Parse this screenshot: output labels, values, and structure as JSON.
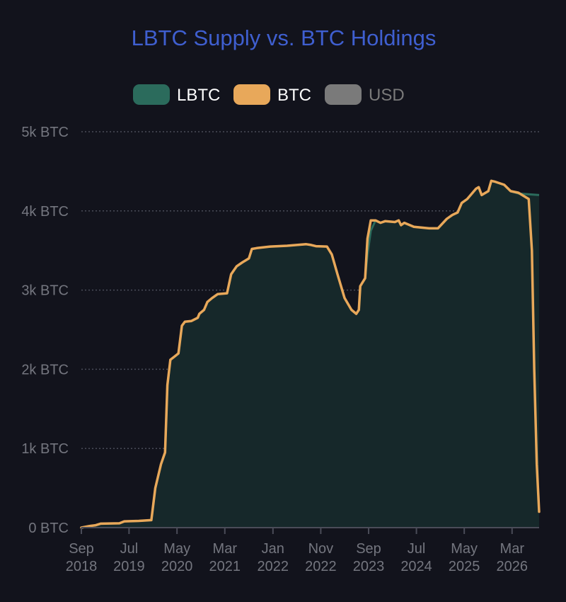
{
  "chart_data": {
    "type": "area",
    "title": "LBTC Supply vs. BTC Holdings",
    "legend": {
      "placement": "top",
      "entries": [
        {
          "name": "LBTC",
          "color": "#2b6b5c",
          "active": true
        },
        {
          "name": "BTC",
          "color": "#e8a85a",
          "active": true
        },
        {
          "name": "USD",
          "color": "#7a7a7a",
          "active": false
        }
      ]
    },
    "y_axis": {
      "range": [
        0,
        5000
      ],
      "ticks": [
        {
          "value": 0,
          "label": "0 BTC"
        },
        {
          "value": 1000,
          "label": "1k BTC"
        },
        {
          "value": 2000,
          "label": "2k BTC"
        },
        {
          "value": 3000,
          "label": "3k BTC"
        },
        {
          "value": 4000,
          "label": "4k BTC"
        },
        {
          "value": 5000,
          "label": "5k BTC"
        }
      ],
      "grid": true
    },
    "x_axis": {
      "range": [
        "2018-09-01",
        "2026-08-20"
      ],
      "ticks": [
        {
          "date": "2018-09-01",
          "month": "Sep",
          "year": "2018"
        },
        {
          "date": "2019-07-01",
          "month": "Jul",
          "year": "2019"
        },
        {
          "date": "2020-05-01",
          "month": "May",
          "year": "2020"
        },
        {
          "date": "2021-03-01",
          "month": "Mar",
          "year": "2021"
        },
        {
          "date": "2022-01-01",
          "month": "Jan",
          "year": "2022"
        },
        {
          "date": "2022-11-01",
          "month": "Nov",
          "year": "2022"
        },
        {
          "date": "2023-09-01",
          "month": "Sep",
          "year": "2023"
        },
        {
          "date": "2024-07-01",
          "month": "Jul",
          "year": "2024"
        },
        {
          "date": "2025-05-01",
          "month": "May",
          "year": "2025"
        },
        {
          "date": "2026-03-01",
          "month": "Mar",
          "year": "2026"
        }
      ]
    },
    "series": [
      {
        "name": "LBTC",
        "type": "area",
        "color": "#2b6b5c",
        "fill": "#16282a",
        "points": [
          [
            "2018-09-01",
            0
          ],
          [
            "2018-10-20",
            20
          ],
          [
            "2018-12-01",
            30
          ],
          [
            "2019-01-01",
            50
          ],
          [
            "2019-05-01",
            55
          ],
          [
            "2019-06-01",
            80
          ],
          [
            "2019-09-01",
            85
          ],
          [
            "2019-11-20",
            95
          ],
          [
            "2019-12-15",
            500
          ],
          [
            "2020-01-20",
            800
          ],
          [
            "2020-02-15",
            950
          ],
          [
            "2020-03-01",
            1800
          ],
          [
            "2020-03-20",
            2120
          ],
          [
            "2020-04-15",
            2160
          ],
          [
            "2020-05-10",
            2200
          ],
          [
            "2020-06-01",
            2550
          ],
          [
            "2020-06-20",
            2600
          ],
          [
            "2020-08-01",
            2610
          ],
          [
            "2020-09-10",
            2650
          ],
          [
            "2020-09-20",
            2700
          ],
          [
            "2020-10-20",
            2750
          ],
          [
            "2020-11-10",
            2850
          ],
          [
            "2020-12-10",
            2900
          ],
          [
            "2021-01-15",
            2950
          ],
          [
            "2021-03-15",
            2960
          ],
          [
            "2021-04-10",
            3200
          ],
          [
            "2021-05-15",
            3300
          ],
          [
            "2021-06-20",
            3350
          ],
          [
            "2021-08-01",
            3400
          ],
          [
            "2021-08-20",
            3520
          ],
          [
            "2021-09-20",
            3530
          ],
          [
            "2021-12-15",
            3550
          ],
          [
            "2022-04-01",
            3560
          ],
          [
            "2022-08-01",
            3580
          ],
          [
            "2022-09-01",
            3570
          ],
          [
            "2022-10-01",
            3555
          ],
          [
            "2022-12-10",
            3550
          ],
          [
            "2023-01-10",
            3450
          ],
          [
            "2023-02-15",
            3200
          ],
          [
            "2023-04-01",
            2900
          ],
          [
            "2023-05-15",
            2750
          ],
          [
            "2023-06-15",
            2700
          ],
          [
            "2023-07-01",
            2750
          ],
          [
            "2023-07-10",
            3050
          ],
          [
            "2023-08-10",
            3150
          ],
          [
            "2023-08-25",
            3450
          ],
          [
            "2023-09-15",
            3750
          ],
          [
            "2023-10-15",
            3880
          ],
          [
            "2023-11-15",
            3850
          ],
          [
            "2023-12-15",
            3870
          ],
          [
            "2024-02-15",
            3860
          ],
          [
            "2024-03-10",
            3880
          ],
          [
            "2024-03-25",
            3820
          ],
          [
            "2024-04-15",
            3850
          ],
          [
            "2024-06-15",
            3800
          ],
          [
            "2024-09-20",
            3780
          ],
          [
            "2024-11-15",
            3780
          ],
          [
            "2025-01-10",
            3900
          ],
          [
            "2025-02-15",
            3950
          ],
          [
            "2025-03-20",
            3980
          ],
          [
            "2025-04-15",
            4100
          ],
          [
            "2025-05-20",
            4150
          ],
          [
            "2025-07-15",
            4280
          ],
          [
            "2025-08-01",
            4300
          ],
          [
            "2025-08-20",
            4200
          ],
          [
            "2025-10-01",
            4250
          ],
          [
            "2025-10-20",
            4380
          ],
          [
            "2025-11-10",
            4370
          ],
          [
            "2026-01-10",
            4330
          ],
          [
            "2026-02-20",
            4250
          ],
          [
            "2026-04-10",
            4220
          ],
          [
            "2026-08-20",
            4200
          ]
        ]
      },
      {
        "name": "BTC",
        "type": "line",
        "color": "#e8a85a",
        "points": [
          [
            "2018-09-01",
            0
          ],
          [
            "2018-10-20",
            20
          ],
          [
            "2018-12-01",
            30
          ],
          [
            "2019-01-01",
            50
          ],
          [
            "2019-05-01",
            55
          ],
          [
            "2019-06-01",
            80
          ],
          [
            "2019-09-01",
            85
          ],
          [
            "2019-11-20",
            95
          ],
          [
            "2019-12-15",
            500
          ],
          [
            "2020-01-20",
            800
          ],
          [
            "2020-02-15",
            950
          ],
          [
            "2020-03-01",
            1800
          ],
          [
            "2020-03-20",
            2120
          ],
          [
            "2020-04-15",
            2160
          ],
          [
            "2020-05-10",
            2200
          ],
          [
            "2020-06-01",
            2550
          ],
          [
            "2020-06-20",
            2600
          ],
          [
            "2020-08-01",
            2610
          ],
          [
            "2020-09-10",
            2650
          ],
          [
            "2020-09-20",
            2700
          ],
          [
            "2020-10-20",
            2750
          ],
          [
            "2020-11-10",
            2850
          ],
          [
            "2020-12-10",
            2900
          ],
          [
            "2021-01-15",
            2950
          ],
          [
            "2021-03-15",
            2960
          ],
          [
            "2021-04-10",
            3200
          ],
          [
            "2021-05-15",
            3300
          ],
          [
            "2021-06-20",
            3350
          ],
          [
            "2021-08-01",
            3400
          ],
          [
            "2021-08-20",
            3520
          ],
          [
            "2021-09-20",
            3530
          ],
          [
            "2021-12-15",
            3550
          ],
          [
            "2022-04-01",
            3560
          ],
          [
            "2022-08-01",
            3580
          ],
          [
            "2022-09-01",
            3570
          ],
          [
            "2022-10-01",
            3555
          ],
          [
            "2022-12-10",
            3550
          ],
          [
            "2023-01-10",
            3450
          ],
          [
            "2023-02-15",
            3200
          ],
          [
            "2023-04-01",
            2900
          ],
          [
            "2023-05-15",
            2750
          ],
          [
            "2023-06-15",
            2700
          ],
          [
            "2023-07-01",
            2750
          ],
          [
            "2023-07-10",
            3050
          ],
          [
            "2023-08-10",
            3150
          ],
          [
            "2023-08-25",
            3650
          ],
          [
            "2023-09-15",
            3880
          ],
          [
            "2023-10-15",
            3880
          ],
          [
            "2023-11-15",
            3850
          ],
          [
            "2023-12-15",
            3870
          ],
          [
            "2024-02-15",
            3860
          ],
          [
            "2024-03-10",
            3880
          ],
          [
            "2024-03-25",
            3820
          ],
          [
            "2024-04-15",
            3850
          ],
          [
            "2024-06-15",
            3800
          ],
          [
            "2024-09-20",
            3780
          ],
          [
            "2024-11-15",
            3780
          ],
          [
            "2025-01-10",
            3900
          ],
          [
            "2025-02-15",
            3950
          ],
          [
            "2025-03-20",
            3980
          ],
          [
            "2025-04-15",
            4100
          ],
          [
            "2025-05-20",
            4150
          ],
          [
            "2025-07-15",
            4280
          ],
          [
            "2025-08-01",
            4300
          ],
          [
            "2025-08-20",
            4200
          ],
          [
            "2025-10-01",
            4250
          ],
          [
            "2025-10-20",
            4380
          ],
          [
            "2025-11-10",
            4370
          ],
          [
            "2026-01-10",
            4330
          ],
          [
            "2026-02-20",
            4250
          ],
          [
            "2026-04-10",
            4230
          ],
          [
            "2026-06-15",
            4150
          ],
          [
            "2026-07-05",
            3500
          ],
          [
            "2026-07-20",
            2000
          ],
          [
            "2026-08-05",
            800
          ],
          [
            "2026-08-20",
            200
          ]
        ]
      }
    ]
  }
}
